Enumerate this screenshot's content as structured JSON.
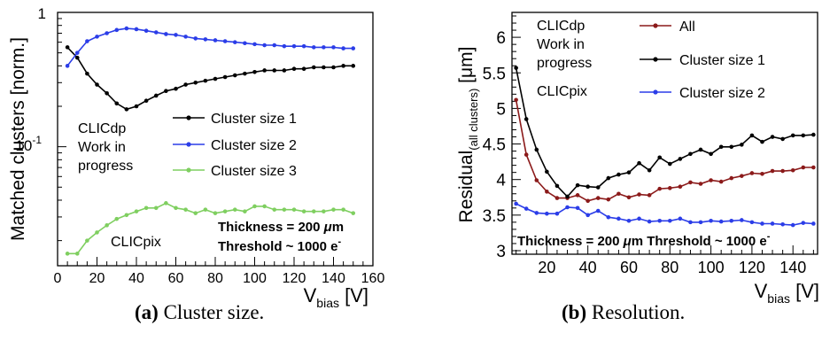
{
  "chart_data": [
    {
      "type": "line",
      "panel": "a",
      "yscale": "log",
      "ylabel": "Matched clusters [norm.]",
      "xlabel_main": "V",
      "xlabel_sub": "bias",
      "xlabel_unit": " [V]",
      "xlim": [
        0,
        160
      ],
      "ylim": [
        0.013,
        1.0
      ],
      "xticks": [
        0,
        20,
        40,
        60,
        80,
        100,
        120,
        140,
        160
      ],
      "ytick_top": "1",
      "ytick_mid_base": "10",
      "ytick_mid_exp": "-1",
      "annotations": {
        "clicdp": [
          "CLICdp",
          "Work in",
          "progress"
        ],
        "clicpix": "CLICpix",
        "thickness_pre": "Thickness = 200 ",
        "thickness_mu": "μ",
        "thickness_post": "m",
        "threshold_pre": "Threshold ~ 1000 e",
        "threshold_sup": "-"
      },
      "x": [
        5,
        10,
        15,
        20,
        25,
        30,
        35,
        40,
        45,
        50,
        55,
        60,
        65,
        70,
        75,
        80,
        85,
        90,
        95,
        100,
        105,
        110,
        115,
        120,
        125,
        130,
        135,
        140,
        145,
        150
      ],
      "series": [
        {
          "name": "Cluster size 1",
          "color": "#000000",
          "values": [
            0.55,
            0.46,
            0.35,
            0.29,
            0.25,
            0.21,
            0.19,
            0.2,
            0.22,
            0.24,
            0.26,
            0.27,
            0.29,
            0.3,
            0.31,
            0.32,
            0.33,
            0.34,
            0.35,
            0.36,
            0.37,
            0.37,
            0.37,
            0.38,
            0.38,
            0.39,
            0.39,
            0.39,
            0.4,
            0.4
          ]
        },
        {
          "name": "Cluster size 2",
          "color": "#2b3de8",
          "values": [
            0.4,
            0.5,
            0.61,
            0.66,
            0.7,
            0.74,
            0.76,
            0.75,
            0.73,
            0.71,
            0.69,
            0.68,
            0.66,
            0.64,
            0.63,
            0.62,
            0.61,
            0.6,
            0.59,
            0.58,
            0.57,
            0.57,
            0.56,
            0.56,
            0.56,
            0.55,
            0.55,
            0.55,
            0.54,
            0.54
          ]
        },
        {
          "name": "Cluster size 3",
          "color": "#7fcf60",
          "values": [
            0.016,
            0.016,
            0.02,
            0.023,
            0.026,
            0.029,
            0.031,
            0.033,
            0.035,
            0.035,
            0.038,
            0.035,
            0.034,
            0.032,
            0.034,
            0.032,
            0.033,
            0.034,
            0.033,
            0.036,
            0.036,
            0.034,
            0.034,
            0.034,
            0.033,
            0.033,
            0.033,
            0.034,
            0.034,
            0.032
          ]
        }
      ]
    },
    {
      "type": "line",
      "panel": "b",
      "ylabel_main": "Residual",
      "ylabel_sub": "(all clusters)",
      "ylabel_unit": " [μm]",
      "xlabel_main": "V",
      "xlabel_sub": "bias",
      "xlabel_unit": " [V]",
      "xlim": [
        3,
        152
      ],
      "ylim": [
        2.95,
        6.35
      ],
      "xticks": [
        20,
        40,
        60,
        80,
        100,
        120,
        140
      ],
      "yticks": [
        "3",
        "3.5",
        "4",
        "4.5",
        "5",
        "5.5",
        "6"
      ],
      "annotations": {
        "clicdp": [
          "CLICdp",
          "Work in",
          "progress"
        ],
        "clicpix": "CLICpix",
        "bottom_pre": "Thickness = 200 ",
        "bottom_mu": "μ",
        "bottom_mid": "m  Threshold ~ 1000 e",
        "bottom_sup": "-"
      },
      "x": [
        5,
        10,
        15,
        20,
        25,
        30,
        35,
        40,
        45,
        50,
        55,
        60,
        65,
        70,
        75,
        80,
        85,
        90,
        95,
        100,
        105,
        110,
        115,
        120,
        125,
        130,
        135,
        140,
        145,
        150
      ],
      "series": [
        {
          "name": "All",
          "color": "#8b1a1a",
          "values": [
            5.12,
            4.35,
            3.99,
            3.83,
            3.74,
            3.74,
            3.78,
            3.7,
            3.74,
            3.72,
            3.8,
            3.75,
            3.79,
            3.78,
            3.87,
            3.88,
            3.9,
            3.96,
            3.94,
            3.99,
            3.97,
            4.02,
            4.05,
            4.09,
            4.08,
            4.12,
            4.12,
            4.13,
            4.17,
            4.17
          ]
        },
        {
          "name": "Cluster size 1",
          "color": "#000000",
          "values": [
            5.57,
            4.85,
            4.42,
            4.11,
            3.91,
            3.76,
            3.92,
            3.9,
            3.89,
            4.02,
            4.07,
            4.1,
            4.23,
            4.13,
            4.31,
            4.22,
            4.29,
            4.36,
            4.42,
            4.36,
            4.46,
            4.46,
            4.49,
            4.62,
            4.53,
            4.6,
            4.57,
            4.62,
            4.62,
            4.63
          ]
        },
        {
          "name": "Cluster size 2",
          "color": "#2b3de8",
          "values": [
            3.66,
            3.59,
            3.53,
            3.52,
            3.52,
            3.61,
            3.6,
            3.5,
            3.56,
            3.47,
            3.45,
            3.42,
            3.45,
            3.41,
            3.42,
            3.42,
            3.45,
            3.4,
            3.4,
            3.42,
            3.41,
            3.42,
            3.43,
            3.4,
            3.38,
            3.38,
            3.37,
            3.36,
            3.39,
            3.38
          ]
        }
      ]
    }
  ],
  "captions": {
    "a_label": "(a)",
    "a_text": " Cluster size.",
    "b_label": "(b)",
    "b_text": " Resolution."
  }
}
